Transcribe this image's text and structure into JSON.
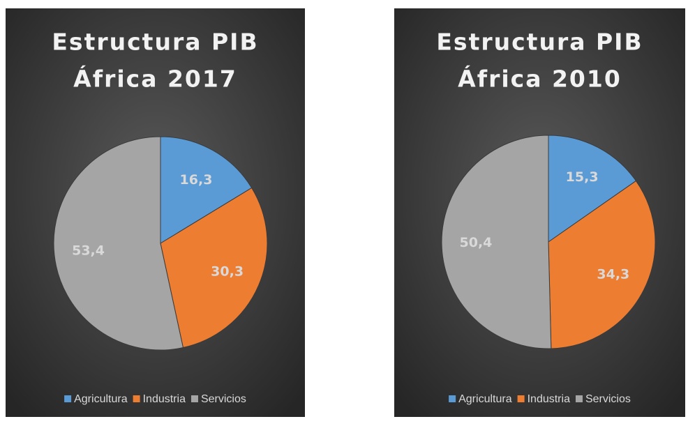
{
  "chart_data": [
    {
      "type": "pie",
      "title": [
        "Estructura PIB",
        "África 2017"
      ],
      "categories": [
        "Agricultura",
        "Industria",
        "Servicios"
      ],
      "values": [
        16.3,
        30.3,
        53.4
      ],
      "value_labels": [
        "16,3",
        "30,3",
        "53,4"
      ],
      "colors": [
        "#5b9bd5",
        "#ed7d31",
        "#a5a5a5"
      ],
      "legend": "bottom"
    },
    {
      "type": "pie",
      "title": [
        "Estructura PIB",
        "África 2010"
      ],
      "categories": [
        "Agricultura",
        "Industria",
        "Servicios"
      ],
      "values": [
        15.3,
        34.3,
        50.4
      ],
      "value_labels": [
        "15,3",
        "34,3",
        "50,4"
      ],
      "colors": [
        "#5b9bd5",
        "#ed7d31",
        "#a5a5a5"
      ],
      "legend": "bottom"
    }
  ]
}
